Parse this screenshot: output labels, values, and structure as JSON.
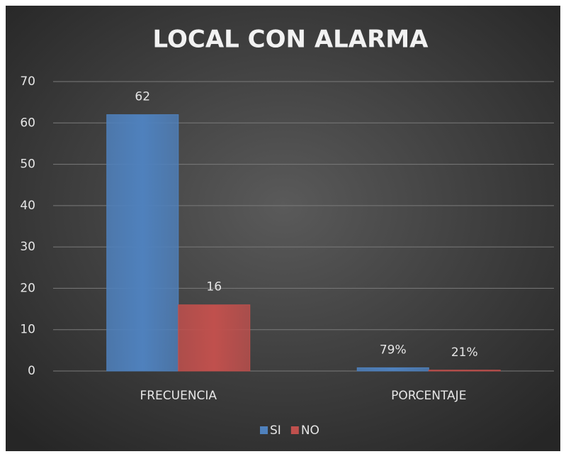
{
  "chart_data": {
    "type": "bar",
    "title": "LOCAL CON ALARMA",
    "categories": [
      "FRECUENCIA",
      "PORCENTAJE"
    ],
    "series": [
      {
        "name": "SI",
        "color": "#4f81bd",
        "values": [
          62,
          0.79
        ],
        "value_labels": [
          "62",
          "79%"
        ]
      },
      {
        "name": "NO",
        "color": "#c0504d",
        "values": [
          16,
          0.21
        ],
        "value_labels": [
          "16",
          "21%"
        ]
      }
    ],
    "ylim": [
      0,
      70
    ],
    "yticks": [
      0,
      10,
      20,
      30,
      40,
      50,
      60,
      70
    ],
    "grid": true,
    "legend": "bottom"
  }
}
